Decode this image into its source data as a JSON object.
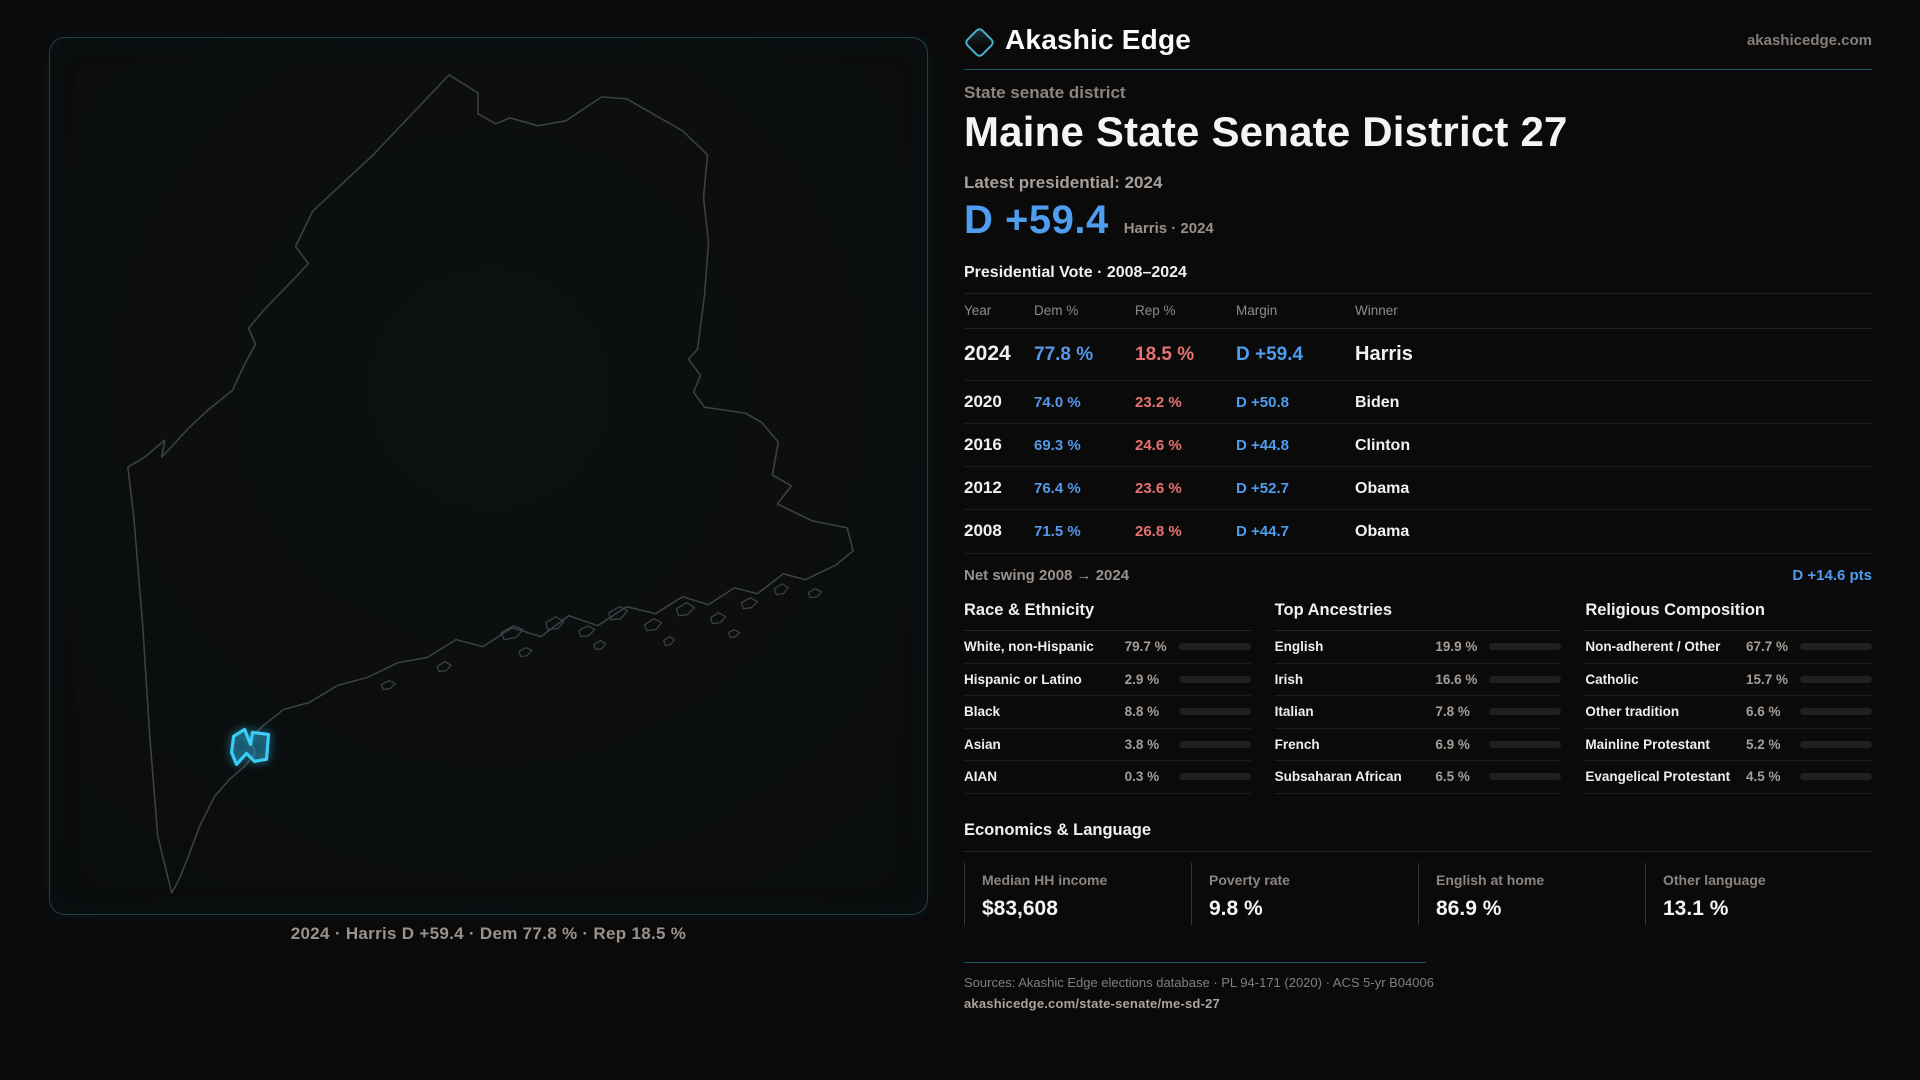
{
  "brand": {
    "name": "Akashic Edge",
    "domain": "akashicedge.com"
  },
  "eyebrow": "State senate district",
  "title": "Maine State Senate District 27",
  "latest_label": "Latest presidential: 2024",
  "headline": {
    "margin": "D +59.4",
    "sub": "Harris · 2024"
  },
  "colors": {
    "dem_blue": "#5599e8",
    "rep_red": "#e87272",
    "margin_blue": "#4f9df0",
    "accent_teal": "#49b2cf",
    "highlight_cyan": "#3bcdf5"
  },
  "table": {
    "title": "Presidential Vote · 2008–2024",
    "columns": {
      "year": "Year",
      "dem": "Dem %",
      "rep": "Rep %",
      "margin": "Margin",
      "winner": "Winner"
    },
    "rows": [
      {
        "year": "2024",
        "dem": "77.8 %",
        "rep": "18.5 %",
        "margin": "D +59.4",
        "winner": "Harris"
      },
      {
        "year": "2020",
        "dem": "74.0 %",
        "rep": "23.2 %",
        "margin": "D +50.8",
        "winner": "Biden"
      },
      {
        "year": "2016",
        "dem": "69.3 %",
        "rep": "24.6 %",
        "margin": "D +44.8",
        "winner": "Clinton"
      },
      {
        "year": "2012",
        "dem": "76.4 %",
        "rep": "23.6 %",
        "margin": "D +52.7",
        "winner": "Obama"
      },
      {
        "year": "2008",
        "dem": "71.5 %",
        "rep": "26.8 %",
        "margin": "D +44.7",
        "winner": "Obama"
      }
    ]
  },
  "net_swing": {
    "label": "Net swing 2008 → 2024",
    "value": "D +14.6 pts"
  },
  "demographics": [
    {
      "heading": "Race & Ethnicity",
      "items": [
        {
          "label": "White, non-Hispanic",
          "value": "79.7 %",
          "pct": 79.7,
          "color": "#92a9c9"
        },
        {
          "label": "Hispanic or Latino",
          "value": "2.9 %",
          "pct": 2.9,
          "color": "#e59f35"
        },
        {
          "label": "Black",
          "value": "8.8 %",
          "pct": 8.8,
          "color": "#8f7fe0"
        },
        {
          "label": "Asian",
          "value": "3.8 %",
          "pct": 3.8,
          "color": "#2fae7e"
        },
        {
          "label": "AIAN",
          "value": "0.3 %",
          "pct": 0.3,
          "color": "#9aa3ad"
        }
      ]
    },
    {
      "heading": "Top Ancestries",
      "items": [
        {
          "label": "English",
          "value": "19.9 %",
          "pct": 19.9,
          "color": "#8ea6c4"
        },
        {
          "label": "Irish",
          "value": "16.6 %",
          "pct": 16.6,
          "color": "#8ea6c4"
        },
        {
          "label": "Italian",
          "value": "7.8 %",
          "pct": 7.8,
          "color": "#9fb0c6"
        },
        {
          "label": "French",
          "value": "6.9 %",
          "pct": 6.9,
          "color": "#9fb0c6"
        },
        {
          "label": "Subsaharan African",
          "value": "6.5 %",
          "pct": 6.5,
          "color": "#8f86e8"
        }
      ]
    },
    {
      "heading": "Religious Composition",
      "items": [
        {
          "label": "Non-adherent / Other",
          "value": "67.7 %",
          "pct": 67.7,
          "color": "#6f7c8f"
        },
        {
          "label": "Catholic",
          "value": "15.7 %",
          "pct": 15.7,
          "color": "#dfaf2e"
        },
        {
          "label": "Other tradition",
          "value": "6.6 %",
          "pct": 6.6,
          "color": "#8a939f"
        },
        {
          "label": "Mainline Protestant",
          "value": "5.2 %",
          "pct": 5.2,
          "color": "#3d8ce8"
        },
        {
          "label": "Evangelical Protestant",
          "value": "4.5 %",
          "pct": 4.5,
          "color": "#e05959"
        }
      ]
    }
  ],
  "economics": {
    "heading": "Economics & Language",
    "stats": [
      {
        "label": "Median HH income",
        "value": "$83,608"
      },
      {
        "label": "Poverty rate",
        "value": "9.8 %"
      },
      {
        "label": "English at home",
        "value": "86.9 %"
      },
      {
        "label": "Other language",
        "value": "13.1 %"
      }
    ]
  },
  "map": {
    "caption": "2024 · Harris D +59.4 · Dem 77.8 % · Rep 18.5 %"
  },
  "footer": {
    "sources": "Sources: Akashic Edge elections database · PL 94-171 (2020) · ACS 5-yr B04006",
    "permalink": "akashicedge.com/state-senate/me-sd-27"
  }
}
